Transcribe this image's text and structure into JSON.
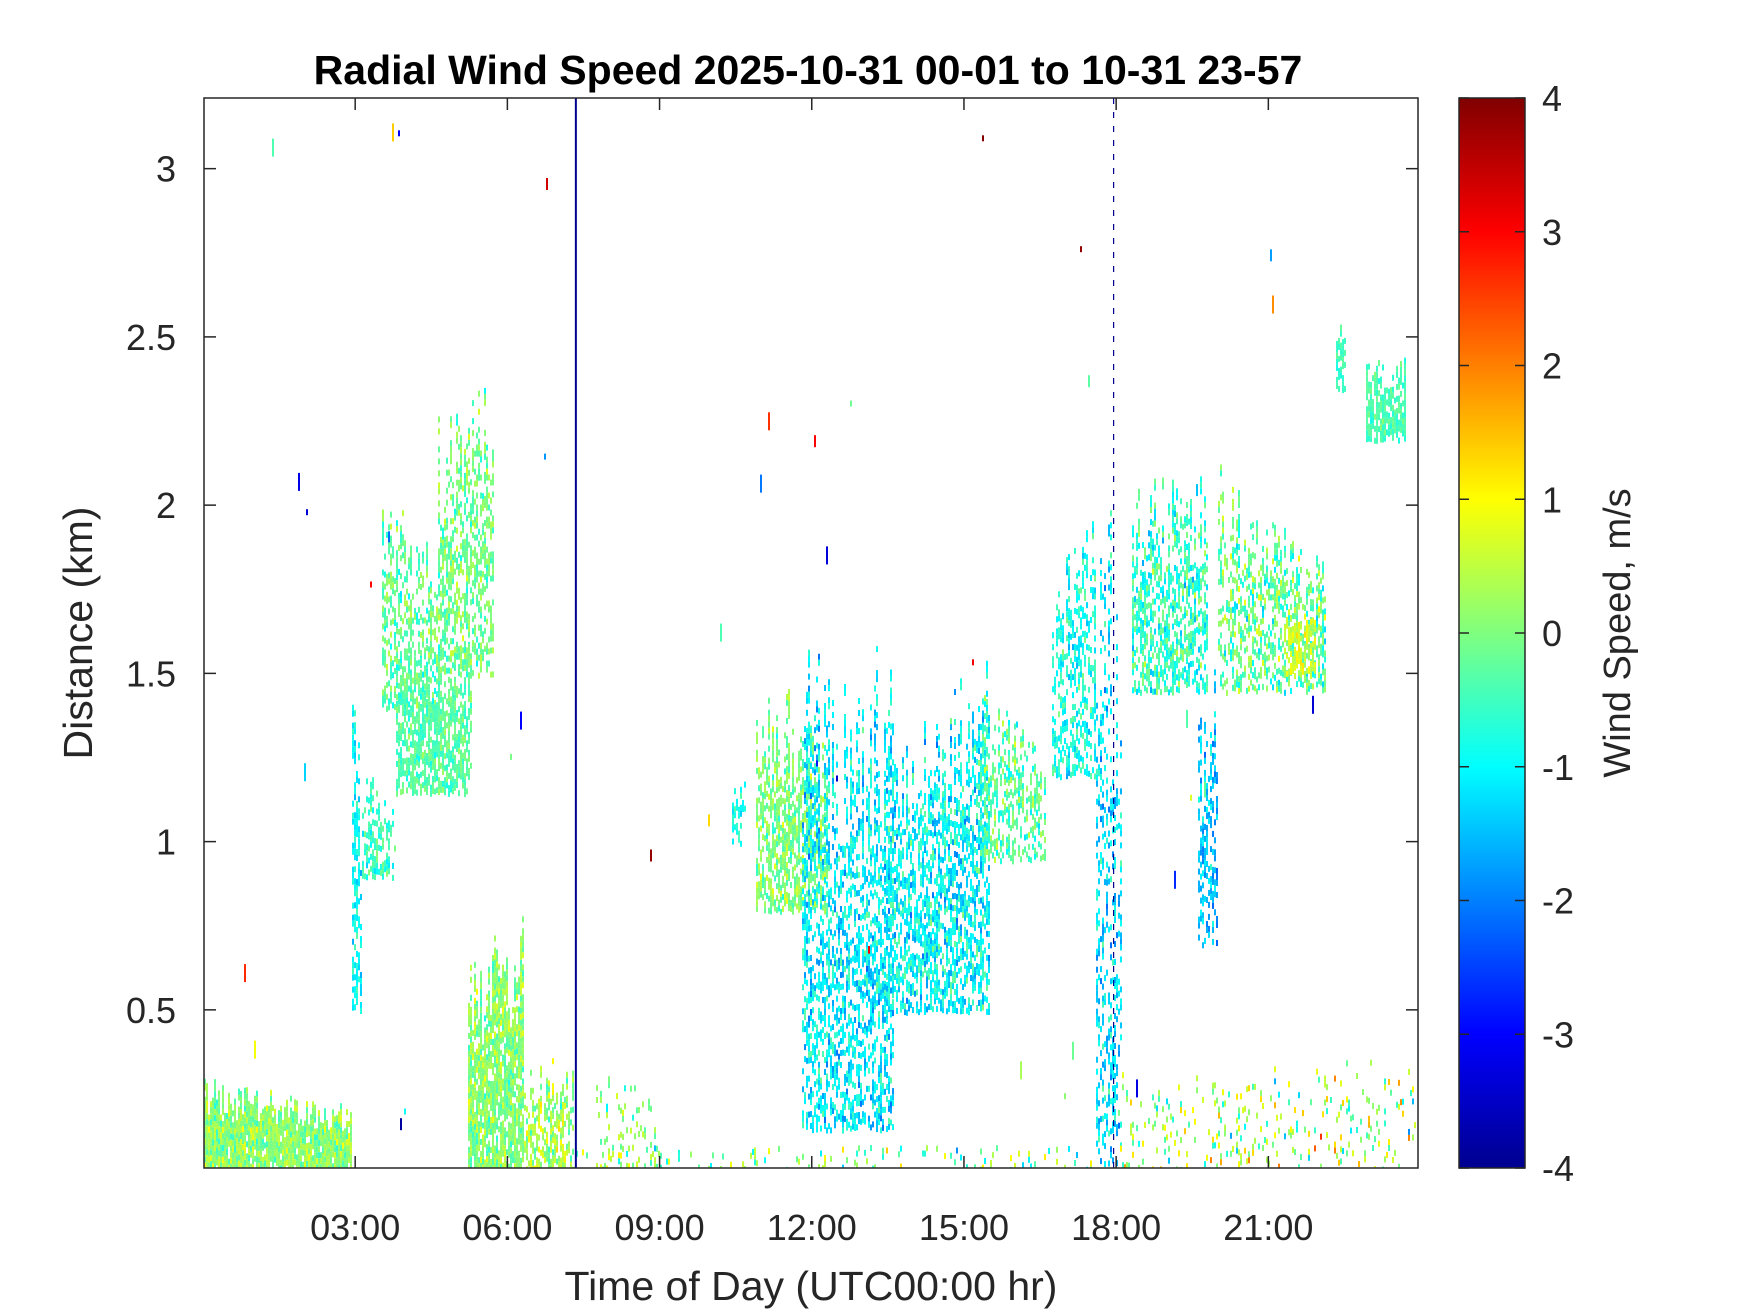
{
  "chart_data": {
    "type": "heatmap",
    "title": "Radial Wind Speed 2025-10-31 00-01 to 10-31 23-57",
    "xlabel": "Time of Day (UTC00:00 hr)",
    "ylabel": "Distance (km)",
    "xlim": [
      0.02,
      23.95
    ],
    "ylim": [
      0.03,
      3.21
    ],
    "x_ticks": [
      {
        "value": 3,
        "label": "03:00"
      },
      {
        "value": 6,
        "label": "06:00"
      },
      {
        "value": 9,
        "label": "09:00"
      },
      {
        "value": 12,
        "label": "12:00"
      },
      {
        "value": 15,
        "label": "15:00"
      },
      {
        "value": 18,
        "label": "18:00"
      },
      {
        "value": 21,
        "label": "21:00"
      }
    ],
    "y_ticks": [
      {
        "value": 0.5,
        "label": "0.5"
      },
      {
        "value": 1,
        "label": "1"
      },
      {
        "value": 1.5,
        "label": "1.5"
      },
      {
        "value": 2,
        "label": "2"
      },
      {
        "value": 2.5,
        "label": "2.5"
      },
      {
        "value": 3,
        "label": "3"
      }
    ],
    "colorbar": {
      "label": "Wind Speed, m/s",
      "colormap": "jet",
      "range": [
        -4,
        4
      ],
      "ticks": [
        {
          "value": 4,
          "label": "4"
        },
        {
          "value": 3,
          "label": "3"
        },
        {
          "value": 2,
          "label": "2"
        },
        {
          "value": 1,
          "label": "1"
        },
        {
          "value": 0,
          "label": "0"
        },
        {
          "value": -1,
          "label": "-1"
        },
        {
          "value": -2,
          "label": "-2"
        },
        {
          "value": -3,
          "label": "-3"
        },
        {
          "value": -4,
          "label": "-4"
        }
      ]
    },
    "vertical_lines_hours": [
      7.35,
      17.95
    ],
    "regions": [
      {
        "t0": 0.02,
        "t1": 2.9,
        "top0": 0.3,
        "top1": 0.22,
        "bottom": 0.03,
        "density": 0.95,
        "mean": 0.1,
        "spread": 0.7
      },
      {
        "t0": 2.9,
        "t1": 3.1,
        "top0": 1.65,
        "top1": 1.2,
        "bottom": 0.5,
        "density": 0.55,
        "mean": -1.0,
        "spread": 0.6
      },
      {
        "t0": 3.1,
        "t1": 3.8,
        "top0": 1.25,
        "top1": 1.1,
        "bottom": 0.9,
        "density": 0.6,
        "mean": -0.6,
        "spread": 0.6
      },
      {
        "t0": 3.5,
        "t1": 4.6,
        "top0": 2.05,
        "top1": 1.9,
        "bottom": 1.4,
        "density": 0.45,
        "mean": -0.2,
        "spread": 0.7
      },
      {
        "t0": 3.8,
        "t1": 5.3,
        "top0": 1.6,
        "top1": 1.6,
        "bottom": 1.15,
        "density": 0.7,
        "mean": -0.3,
        "spread": 0.5
      },
      {
        "t0": 4.6,
        "t1": 5.7,
        "top0": 2.3,
        "top1": 2.4,
        "bottom": 1.5,
        "density": 0.5,
        "mean": -0.1,
        "spread": 0.7
      },
      {
        "t0": 5.2,
        "t1": 6.3,
        "top0": 0.65,
        "top1": 0.8,
        "bottom": 0.03,
        "density": 0.85,
        "mean": 0.1,
        "spread": 0.7
      },
      {
        "t0": 6.3,
        "t1": 7.3,
        "top0": 0.35,
        "top1": 0.35,
        "bottom": 0.03,
        "density": 0.6,
        "mean": 0.3,
        "spread": 0.9
      },
      {
        "t0": 7.7,
        "t1": 8.9,
        "top0": 0.4,
        "top1": 0.3,
        "bottom": 0.03,
        "density": 0.15,
        "mean": 0.2,
        "spread": 0.8
      },
      {
        "t0": 10.4,
        "t1": 10.7,
        "top0": 1.2,
        "top1": 1.2,
        "bottom": 1.0,
        "density": 0.5,
        "mean": -0.7,
        "spread": 0.5
      },
      {
        "t0": 10.9,
        "t1": 12.3,
        "top0": 1.5,
        "top1": 1.4,
        "bottom": 0.8,
        "density": 0.6,
        "mean": 0.0,
        "spread": 0.7
      },
      {
        "t0": 11.8,
        "t1": 13.6,
        "top0": 1.6,
        "top1": 1.6,
        "bottom": 0.15,
        "density": 0.5,
        "mean": -1.1,
        "spread": 0.8
      },
      {
        "t0": 13.4,
        "t1": 15.5,
        "top0": 1.4,
        "top1": 1.55,
        "bottom": 0.5,
        "density": 0.55,
        "mean": -1.0,
        "spread": 0.9
      },
      {
        "t0": 15.3,
        "t1": 16.6,
        "top0": 1.5,
        "top1": 1.35,
        "bottom": 0.95,
        "density": 0.45,
        "mean": -0.3,
        "spread": 0.9
      },
      {
        "t0": 16.7,
        "t1": 17.6,
        "top0": 1.8,
        "top1": 2.0,
        "bottom": 1.2,
        "density": 0.45,
        "mean": -0.8,
        "spread": 0.7
      },
      {
        "t0": 17.6,
        "t1": 18.1,
        "top0": 2.0,
        "top1": 2.0,
        "bottom": 0.05,
        "density": 0.35,
        "mean": -1.2,
        "spread": 0.8
      },
      {
        "t0": 18.3,
        "t1": 19.8,
        "top0": 2.1,
        "top1": 2.1,
        "bottom": 1.45,
        "density": 0.55,
        "mean": -0.6,
        "spread": 0.9
      },
      {
        "t0": 19.6,
        "t1": 20.0,
        "top0": 1.6,
        "top1": 1.5,
        "bottom": 0.7,
        "density": 0.45,
        "mean": -1.5,
        "spread": 0.7
      },
      {
        "t0": 20.0,
        "t1": 22.1,
        "top0": 2.15,
        "top1": 1.85,
        "bottom": 1.45,
        "density": 0.5,
        "mean": -0.2,
        "spread": 1.0
      },
      {
        "t0": 21.3,
        "t1": 21.9,
        "top0": 1.75,
        "top1": 1.7,
        "bottom": 1.5,
        "density": 0.6,
        "mean": 0.7,
        "spread": 0.5
      },
      {
        "t0": 22.9,
        "t1": 23.7,
        "top0": 2.45,
        "top1": 2.45,
        "bottom": 2.2,
        "density": 0.7,
        "mean": -0.4,
        "spread": 0.4
      },
      {
        "t0": 22.3,
        "t1": 22.5,
        "top0": 2.55,
        "top1": 2.55,
        "bottom": 2.35,
        "density": 0.5,
        "mean": -0.5,
        "spread": 0.4
      },
      {
        "t0": 18.0,
        "t1": 23.9,
        "top0": 0.35,
        "top1": 0.4,
        "bottom": 0.03,
        "density": 0.12,
        "mean": 0.3,
        "spread": 1.6
      },
      {
        "t0": 7.3,
        "t1": 17.5,
        "top0": 0.1,
        "top1": 0.1,
        "bottom": 0.03,
        "density": 0.12,
        "mean": 0.0,
        "spread": 1.5
      }
    ]
  }
}
